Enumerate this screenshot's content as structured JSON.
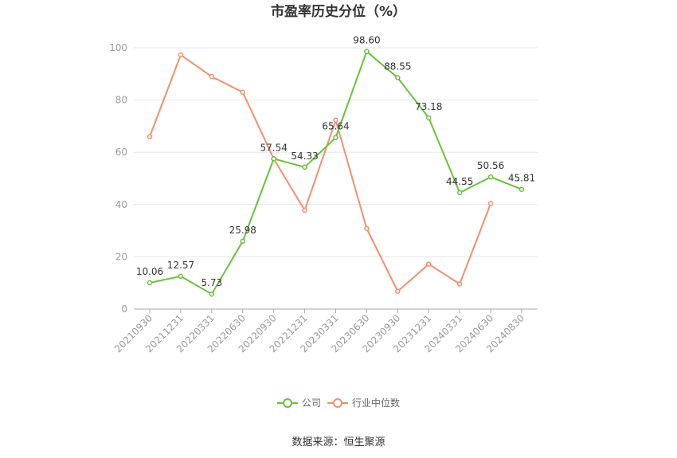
{
  "chart_data": {
    "type": "line",
    "title": "市盈率历史分位（%）",
    "categories": [
      "20210930",
      "20211231",
      "20220331",
      "20220630",
      "20220930",
      "20221231",
      "20230331",
      "20230630",
      "20230930",
      "20231231",
      "20240331",
      "20240630",
      "20240830"
    ],
    "series": [
      {
        "name": "公司",
        "color": "#67c23a",
        "values": [
          10.06,
          12.57,
          5.73,
          25.98,
          57.54,
          54.33,
          65.64,
          98.6,
          88.55,
          73.18,
          44.55,
          50.56,
          45.81
        ],
        "labels": [
          "10.06",
          "12.57",
          "5.73",
          "25.98",
          "57.54",
          "54.33",
          "65.64",
          "98.60",
          "88.55",
          "73.18",
          "44.55",
          "50.56",
          "45.81"
        ]
      },
      {
        "name": "行业中位数",
        "color": "#f0906a",
        "values": [
          66.0,
          97.3,
          89.0,
          83.0,
          57.5,
          37.8,
          72.3,
          30.8,
          6.8,
          17.2,
          9.6,
          40.4,
          null
        ]
      }
    ],
    "ylim": [
      0,
      100
    ],
    "yticks": [
      "0",
      "20",
      "40",
      "60",
      "80",
      "100"
    ],
    "grid": true,
    "legend_position": "bottom"
  },
  "source_text": "数据来源：恒生聚源"
}
